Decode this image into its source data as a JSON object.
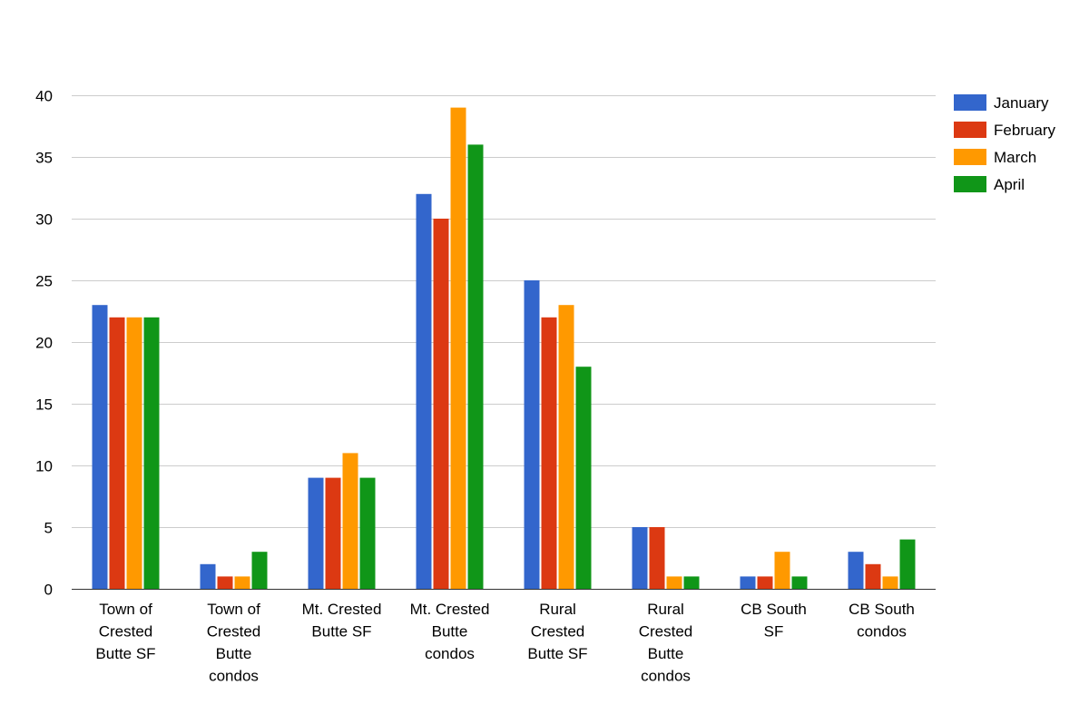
{
  "chart_data": {
    "type": "bar",
    "title": "",
    "xlabel": "",
    "ylabel": "",
    "ylim": [
      0,
      40
    ],
    "yticks": [
      0,
      5,
      10,
      15,
      20,
      25,
      30,
      35,
      40
    ],
    "grid": true,
    "legend_position": "right-top",
    "categories": [
      [
        "Town of",
        "Crested",
        "Butte SF"
      ],
      [
        "Town of",
        "Crested",
        "Butte",
        "condos"
      ],
      [
        "Mt. Crested",
        "Butte SF"
      ],
      [
        "Mt. Crested",
        "Butte",
        "condos"
      ],
      [
        "Rural",
        "Crested",
        "Butte SF"
      ],
      [
        "Rural",
        "Crested",
        "Butte",
        "condos"
      ],
      [
        "CB South",
        "SF"
      ],
      [
        "CB South",
        "condos"
      ]
    ],
    "series": [
      {
        "name": "January",
        "color": "#3366cc",
        "values": [
          23,
          2,
          9,
          32,
          25,
          5,
          1,
          3
        ]
      },
      {
        "name": "February",
        "color": "#dc3912",
        "values": [
          22,
          1,
          9,
          30,
          22,
          5,
          1,
          2
        ]
      },
      {
        "name": "March",
        "color": "#ff9900",
        "values": [
          22,
          1,
          11,
          39,
          23,
          1,
          3,
          1
        ]
      },
      {
        "name": "April",
        "color": "#109618",
        "values": [
          22,
          3,
          9,
          36,
          18,
          1,
          1,
          4
        ]
      }
    ]
  }
}
